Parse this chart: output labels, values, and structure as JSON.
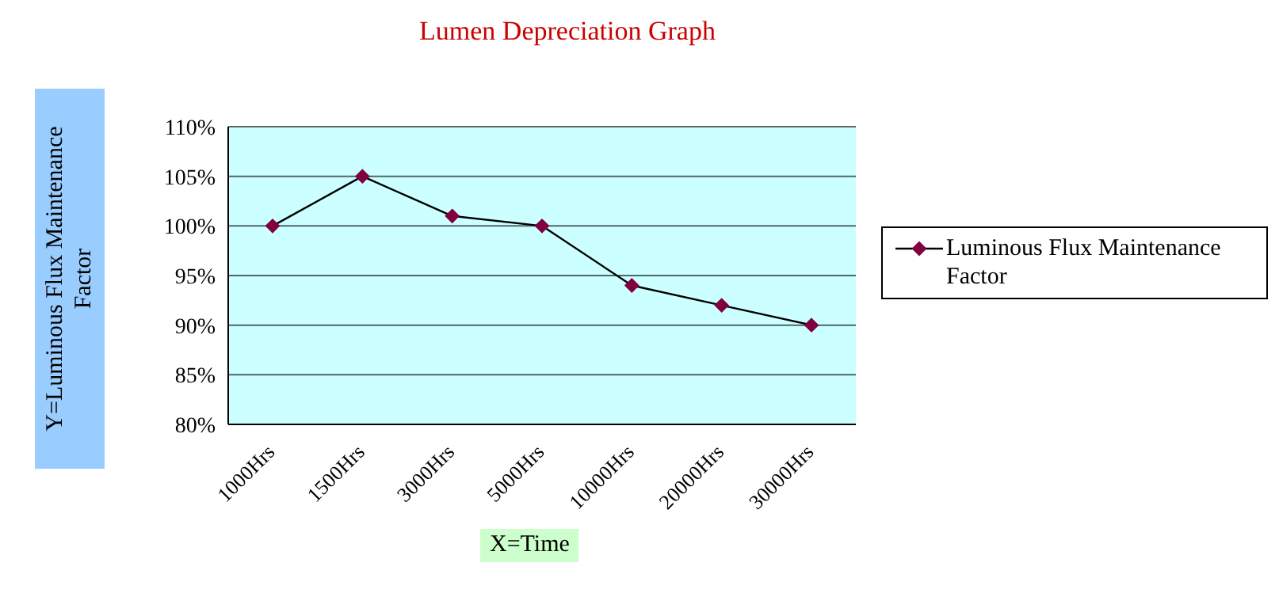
{
  "chart_data": {
    "type": "line",
    "title": "Lumen Depreciation Graph",
    "xlabel": "X=Time",
    "ylabel": "Y=Luminous Flux Maintenance Factor",
    "categories": [
      "1000Hrs",
      "1500Hrs",
      "3000Hrs",
      "5000Hrs",
      "10000Hrs",
      "20000Hrs",
      "30000Hrs"
    ],
    "series": [
      {
        "name": "Luminous Flux Maintenance Factor",
        "color": "#800040",
        "values": [
          100,
          105,
          101,
          100,
          94,
          92,
          90
        ]
      }
    ],
    "ylim": [
      80,
      110
    ],
    "yticks": [
      {
        "value": 80,
        "label": "80%"
      },
      {
        "value": 85,
        "label": "85%"
      },
      {
        "value": 90,
        "label": "90%"
      },
      {
        "value": 95,
        "label": "95%"
      },
      {
        "value": 100,
        "label": "100%"
      },
      {
        "value": 105,
        "label": "105%"
      },
      {
        "value": 110,
        "label": "110%"
      }
    ],
    "grid": "y",
    "legend": "right",
    "marker": "diamond",
    "line_style": "solid"
  }
}
